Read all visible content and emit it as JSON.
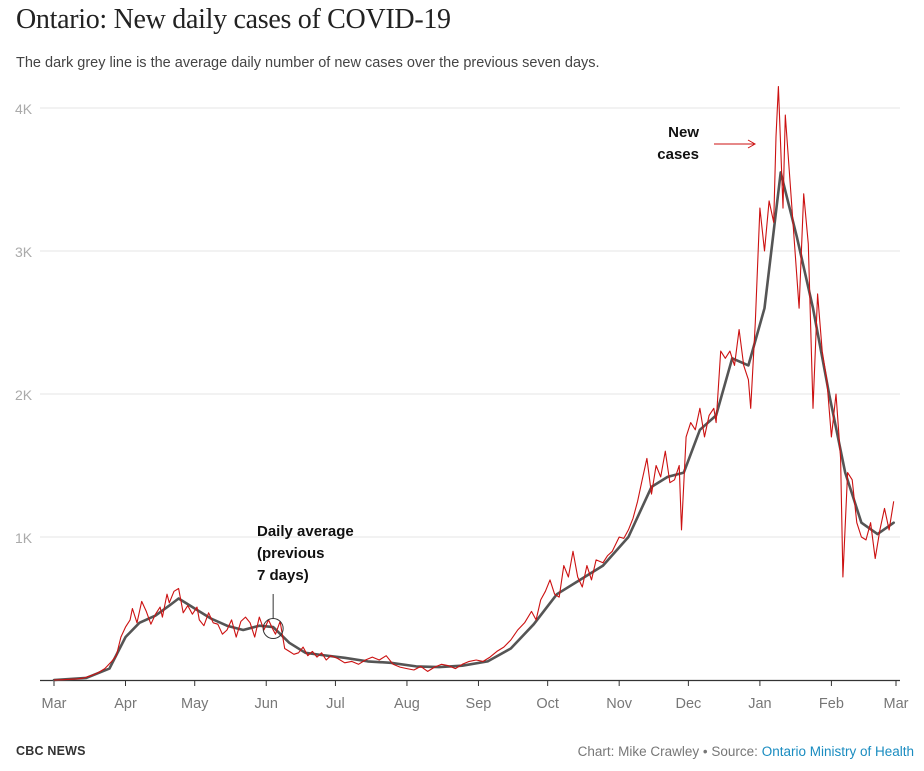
{
  "header": {
    "title": "Ontario: New daily cases of COVID-19",
    "subtitle": "The dark grey line is the average daily number of new cases over the previous seven days."
  },
  "footer": {
    "brand": "CBC NEWS",
    "credit_prefix": "Chart: Mike Crawley • Source: ",
    "source_link": "Ontario Ministry of Health"
  },
  "colors": {
    "daily_line": "#cc1111",
    "average_line": "#555555",
    "gridline": "#e6e6e6",
    "axis": "#333333",
    "tick_label": "#aaaaaa",
    "link": "#1a8cc0"
  },
  "chart_data": {
    "type": "line",
    "title": "Ontario: New daily cases of COVID-19",
    "subtitle": "The dark grey line is the average daily number of new cases over the previous seven days.",
    "xlabel": "",
    "ylabel": "",
    "x_ticks": [
      "Mar",
      "Apr",
      "May",
      "Jun",
      "Jul",
      "Aug",
      "Sep",
      "Oct",
      "Nov",
      "Dec",
      "Jan",
      "Feb",
      "Mar"
    ],
    "x_tick_dates": [
      "2020-03-01",
      "2020-04-01",
      "2020-05-01",
      "2020-06-01",
      "2020-07-01",
      "2020-08-01",
      "2020-09-01",
      "2020-10-01",
      "2020-11-01",
      "2020-12-01",
      "2021-01-01",
      "2021-02-01",
      "2021-03-01"
    ],
    "x_range": [
      "2020-03-01",
      "2021-03-01"
    ],
    "y_ticks": [
      {
        "value": 1000,
        "label": "1K"
      },
      {
        "value": 2000,
        "label": "2K"
      },
      {
        "value": 3000,
        "label": "3K"
      },
      {
        "value": 4000,
        "label": "4K"
      }
    ],
    "ylim": [
      0,
      4100
    ],
    "grid": true,
    "legend": "none",
    "annotations": [
      {
        "text_lines": [
          "New",
          "cases"
        ],
        "points_to": "daily",
        "date": "2021-01-08",
        "value": 3800
      },
      {
        "text_lines": [
          "Daily average",
          "(previous",
          "7 days)"
        ],
        "points_to": "average",
        "date": "2020-06-04",
        "value": 360
      }
    ],
    "series": [
      {
        "key": "daily",
        "values": [
          [
            "2020-03-01",
            0
          ],
          [
            "2020-03-05",
            2
          ],
          [
            "2020-03-08",
            5
          ],
          [
            "2020-03-11",
            8
          ],
          [
            "2020-03-14",
            15
          ],
          [
            "2020-03-17",
            30
          ],
          [
            "2020-03-20",
            50
          ],
          [
            "2020-03-23",
            80
          ],
          [
            "2020-03-26",
            130
          ],
          [
            "2020-03-28",
            170
          ],
          [
            "2020-03-30",
            300
          ],
          [
            "2020-04-01",
            370
          ],
          [
            "2020-04-03",
            420
          ],
          [
            "2020-04-04",
            500
          ],
          [
            "2020-04-06",
            400
          ],
          [
            "2020-04-08",
            550
          ],
          [
            "2020-04-10",
            480
          ],
          [
            "2020-04-12",
            390
          ],
          [
            "2020-04-14",
            460
          ],
          [
            "2020-04-16",
            510
          ],
          [
            "2020-04-17",
            440
          ],
          [
            "2020-04-19",
            600
          ],
          [
            "2020-04-20",
            540
          ],
          [
            "2020-04-22",
            620
          ],
          [
            "2020-04-24",
            640
          ],
          [
            "2020-04-26",
            470
          ],
          [
            "2020-04-28",
            520
          ],
          [
            "2020-04-30",
            460
          ],
          [
            "2020-05-02",
            510
          ],
          [
            "2020-05-03",
            420
          ],
          [
            "2020-05-05",
            380
          ],
          [
            "2020-05-07",
            470
          ],
          [
            "2020-05-09",
            400
          ],
          [
            "2020-05-11",
            390
          ],
          [
            "2020-05-13",
            320
          ],
          [
            "2020-05-15",
            350
          ],
          [
            "2020-05-17",
            420
          ],
          [
            "2020-05-19",
            300
          ],
          [
            "2020-05-21",
            410
          ],
          [
            "2020-05-23",
            440
          ],
          [
            "2020-05-25",
            400
          ],
          [
            "2020-05-27",
            300
          ],
          [
            "2020-05-29",
            440
          ],
          [
            "2020-05-31",
            350
          ],
          [
            "2020-06-02",
            420
          ],
          [
            "2020-06-04",
            350
          ],
          [
            "2020-06-05",
            320
          ],
          [
            "2020-06-07",
            410
          ],
          [
            "2020-06-09",
            220
          ],
          [
            "2020-06-11",
            200
          ],
          [
            "2020-06-13",
            180
          ],
          [
            "2020-06-15",
            190
          ],
          [
            "2020-06-17",
            230
          ],
          [
            "2020-06-19",
            170
          ],
          [
            "2020-06-21",
            200
          ],
          [
            "2020-06-23",
            160
          ],
          [
            "2020-06-25",
            190
          ],
          [
            "2020-06-27",
            140
          ],
          [
            "2020-06-29",
            170
          ],
          [
            "2020-07-02",
            150
          ],
          [
            "2020-07-05",
            120
          ],
          [
            "2020-07-08",
            130
          ],
          [
            "2020-07-11",
            110
          ],
          [
            "2020-07-14",
            140
          ],
          [
            "2020-07-17",
            160
          ],
          [
            "2020-07-20",
            140
          ],
          [
            "2020-07-23",
            170
          ],
          [
            "2020-07-26",
            110
          ],
          [
            "2020-07-29",
            90
          ],
          [
            "2020-08-01",
            80
          ],
          [
            "2020-08-04",
            70
          ],
          [
            "2020-08-07",
            95
          ],
          [
            "2020-08-10",
            60
          ],
          [
            "2020-08-13",
            90
          ],
          [
            "2020-08-16",
            110
          ],
          [
            "2020-08-19",
            100
          ],
          [
            "2020-08-22",
            80
          ],
          [
            "2020-08-25",
            110
          ],
          [
            "2020-08-28",
            130
          ],
          [
            "2020-08-31",
            140
          ],
          [
            "2020-09-03",
            130
          ],
          [
            "2020-09-06",
            160
          ],
          [
            "2020-09-09",
            200
          ],
          [
            "2020-09-12",
            230
          ],
          [
            "2020-09-15",
            280
          ],
          [
            "2020-09-18",
            350
          ],
          [
            "2020-09-21",
            400
          ],
          [
            "2020-09-24",
            480
          ],
          [
            "2020-09-26",
            420
          ],
          [
            "2020-09-28",
            560
          ],
          [
            "2020-09-30",
            620
          ],
          [
            "2020-10-02",
            700
          ],
          [
            "2020-10-04",
            600
          ],
          [
            "2020-10-06",
            580
          ],
          [
            "2020-10-08",
            800
          ],
          [
            "2020-10-10",
            720
          ],
          [
            "2020-10-12",
            900
          ],
          [
            "2020-10-14",
            720
          ],
          [
            "2020-10-16",
            650
          ],
          [
            "2020-10-18",
            800
          ],
          [
            "2020-10-20",
            700
          ],
          [
            "2020-10-22",
            840
          ],
          [
            "2020-10-25",
            820
          ],
          [
            "2020-10-27",
            870
          ],
          [
            "2020-10-29",
            900
          ],
          [
            "2020-11-01",
            1000
          ],
          [
            "2020-11-03",
            990
          ],
          [
            "2020-11-05",
            1050
          ],
          [
            "2020-11-07",
            1130
          ],
          [
            "2020-11-09",
            1250
          ],
          [
            "2020-11-11",
            1400
          ],
          [
            "2020-11-13",
            1550
          ],
          [
            "2020-11-15",
            1300
          ],
          [
            "2020-11-17",
            1500
          ],
          [
            "2020-11-19",
            1420
          ],
          [
            "2020-11-21",
            1600
          ],
          [
            "2020-11-23",
            1380
          ],
          [
            "2020-11-25",
            1400
          ],
          [
            "2020-11-27",
            1500
          ],
          [
            "2020-11-28",
            1050
          ],
          [
            "2020-11-30",
            1700
          ],
          [
            "2020-12-02",
            1800
          ],
          [
            "2020-12-04",
            1750
          ],
          [
            "2020-12-06",
            1900
          ],
          [
            "2020-12-08",
            1700
          ],
          [
            "2020-12-10",
            1850
          ],
          [
            "2020-12-12",
            1900
          ],
          [
            "2020-12-13",
            1800
          ],
          [
            "2020-12-15",
            2300
          ],
          [
            "2020-12-17",
            2250
          ],
          [
            "2020-12-19",
            2300
          ],
          [
            "2020-12-21",
            2200
          ],
          [
            "2020-12-23",
            2450
          ],
          [
            "2020-12-25",
            2200
          ],
          [
            "2020-12-27",
            2100
          ],
          [
            "2020-12-28",
            1900
          ],
          [
            "2020-12-30",
            2500
          ],
          [
            "2021-01-01",
            3300
          ],
          [
            "2021-01-03",
            3000
          ],
          [
            "2021-01-05",
            3350
          ],
          [
            "2021-01-07",
            3200
          ],
          [
            "2021-01-08",
            3800
          ],
          [
            "2021-01-09",
            4150
          ],
          [
            "2021-01-11",
            3300
          ],
          [
            "2021-01-12",
            3950
          ],
          [
            "2021-01-14",
            3500
          ],
          [
            "2021-01-16",
            3050
          ],
          [
            "2021-01-18",
            2600
          ],
          [
            "2021-01-20",
            3400
          ],
          [
            "2021-01-22",
            3050
          ],
          [
            "2021-01-24",
            1900
          ],
          [
            "2021-01-26",
            2700
          ],
          [
            "2021-01-28",
            2300
          ],
          [
            "2021-01-30",
            2100
          ],
          [
            "2021-02-01",
            1700
          ],
          [
            "2021-02-03",
            2000
          ],
          [
            "2021-02-05",
            1550
          ],
          [
            "2021-02-06",
            720
          ],
          [
            "2021-02-08",
            1450
          ],
          [
            "2021-02-10",
            1400
          ],
          [
            "2021-02-12",
            1100
          ],
          [
            "2021-02-14",
            1000
          ],
          [
            "2021-02-16",
            980
          ],
          [
            "2021-02-18",
            1100
          ],
          [
            "2021-02-20",
            850
          ],
          [
            "2021-02-22",
            1050
          ],
          [
            "2021-02-24",
            1200
          ],
          [
            "2021-02-26",
            1050
          ],
          [
            "2021-02-28",
            1250
          ]
        ]
      },
      {
        "key": "average",
        "values": [
          [
            "2020-03-01",
            0
          ],
          [
            "2020-03-15",
            15
          ],
          [
            "2020-03-25",
            80
          ],
          [
            "2020-04-01",
            300
          ],
          [
            "2020-04-07",
            400
          ],
          [
            "2020-04-14",
            450
          ],
          [
            "2020-04-20",
            520
          ],
          [
            "2020-04-24",
            570
          ],
          [
            "2020-05-01",
            500
          ],
          [
            "2020-05-08",
            430
          ],
          [
            "2020-05-15",
            380
          ],
          [
            "2020-05-22",
            350
          ],
          [
            "2020-05-29",
            380
          ],
          [
            "2020-06-04",
            370
          ],
          [
            "2020-06-11",
            260
          ],
          [
            "2020-06-18",
            190
          ],
          [
            "2020-06-25",
            175
          ],
          [
            "2020-07-05",
            155
          ],
          [
            "2020-07-15",
            130
          ],
          [
            "2020-07-25",
            120
          ],
          [
            "2020-08-05",
            95
          ],
          [
            "2020-08-15",
            90
          ],
          [
            "2020-08-25",
            100
          ],
          [
            "2020-09-05",
            130
          ],
          [
            "2020-09-15",
            220
          ],
          [
            "2020-09-25",
            390
          ],
          [
            "2020-10-05",
            600
          ],
          [
            "2020-10-15",
            700
          ],
          [
            "2020-10-25",
            800
          ],
          [
            "2020-11-05",
            1000
          ],
          [
            "2020-11-15",
            1350
          ],
          [
            "2020-11-22",
            1420
          ],
          [
            "2020-11-29",
            1450
          ],
          [
            "2020-12-06",
            1750
          ],
          [
            "2020-12-13",
            1850
          ],
          [
            "2020-12-20",
            2250
          ],
          [
            "2020-12-27",
            2200
          ],
          [
            "2021-01-03",
            2600
          ],
          [
            "2021-01-10",
            3550
          ],
          [
            "2021-01-17",
            3100
          ],
          [
            "2021-01-24",
            2600
          ],
          [
            "2021-01-31",
            2000
          ],
          [
            "2021-02-07",
            1450
          ],
          [
            "2021-02-14",
            1100
          ],
          [
            "2021-02-21",
            1020
          ],
          [
            "2021-02-28",
            1100
          ]
        ]
      }
    ]
  }
}
